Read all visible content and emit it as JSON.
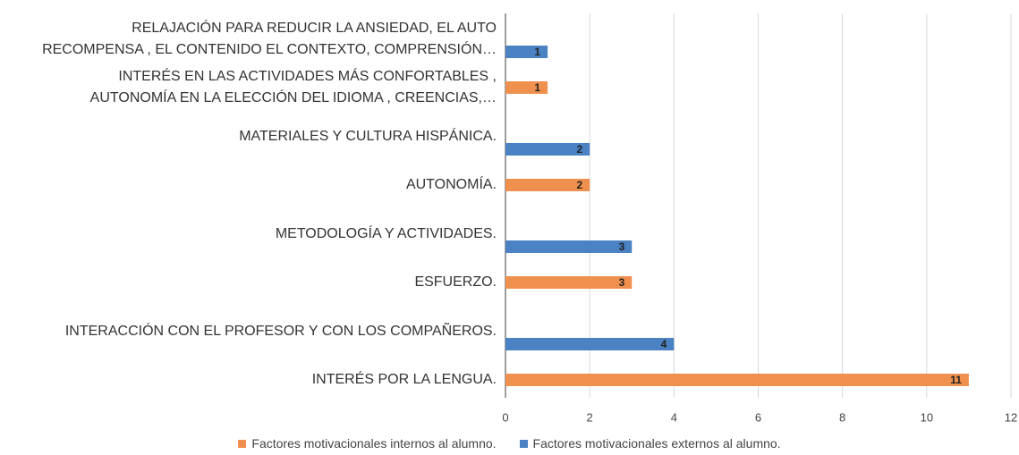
{
  "chart_data": {
    "type": "bar",
    "orientation": "horizontal",
    "categories": [
      "RELAJACIÓN PARA REDUCIR LA ANSIEDAD, EL AUTO\nRECOMPENSA , EL CONTENIDO EL CONTEXTO,  COMPRENSIÓN…",
      "INTERÉS EN LAS ACTIVIDADES MÁS CONFORTABLES ,\nAUTONOMÍA  EN LA ELECCIÓN DEL IDIOMA , CREENCIAS,…",
      "MATERIALES Y  CULTURA HISPÁNICA.",
      "AUTONOMÍA.",
      "METODOLOGÍA Y ACTIVIDADES.",
      "ESFUERZO.",
      "INTERACCIÓN CON EL PROFESOR Y CON LOS COMPAÑEROS.",
      "INTERÉS POR LA LENGUA."
    ],
    "series": [
      {
        "name": "Factores motivacionales internos al alumno.",
        "color": "#f0904e",
        "values": [
          null,
          1,
          null,
          2,
          null,
          3,
          null,
          11
        ]
      },
      {
        "name": "Factores motivacionales externos al alumno.",
        "color": "#4a82c3",
        "values": [
          1,
          null,
          2,
          null,
          3,
          null,
          4,
          null
        ]
      }
    ],
    "xlim": [
      0,
      12
    ],
    "xticks": [
      0,
      2,
      4,
      6,
      8,
      10,
      12
    ],
    "grid": true,
    "legend": "bottom"
  }
}
